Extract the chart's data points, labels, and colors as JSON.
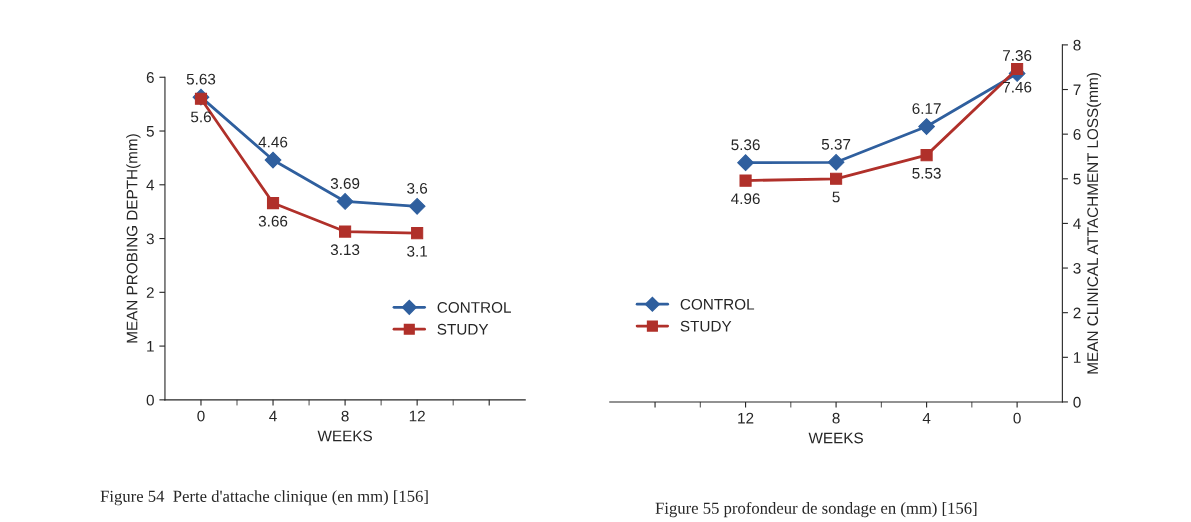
{
  "chart_data": [
    {
      "type": "line",
      "xlabel": "WEEKS",
      "ylabel": "MEAN PROBING DEPTH(mm)",
      "categories": [
        "0",
        "4",
        "8",
        "12",
        null
      ],
      "ylim": [
        0,
        6
      ],
      "yticks": [
        0,
        1,
        2,
        3,
        4,
        5,
        6
      ],
      "grid": false,
      "legend": "bottom right",
      "data_labels": true,
      "series": [
        {
          "name": "CONTROL",
          "color": "#2f5f9e",
          "marker": "diamond",
          "values": [
            5.63,
            4.46,
            3.69,
            3.6,
            null
          ]
        },
        {
          "name": "STUDY",
          "color": "#b0302a",
          "marker": "square",
          "values": [
            5.6,
            3.66,
            3.13,
            3.1,
            null
          ]
        }
      ],
      "annotations": [
        "Figure 54  Perte d'attache clinique (en mm) [156]"
      ]
    },
    {
      "type": "line",
      "xlabel": "WEEKS",
      "y2label": "MEAN CLINICAL ATTACHMENT LOSS(mm)",
      "categories": [
        null,
        "12",
        "8",
        "4",
        "0"
      ],
      "y2lim": [
        0,
        8
      ],
      "y2ticks": [
        0,
        1,
        2,
        3,
        4,
        5,
        6,
        7,
        8
      ],
      "grid": false,
      "legend": "bottom left",
      "data_labels": true,
      "series": [
        {
          "name": "CONTROL",
          "color": "#2f5f9e",
          "marker": "diamond",
          "axis": "y2",
          "values": [
            null,
            5.36,
            5.37,
            6.17,
            7.36
          ]
        },
        {
          "name": "STUDY",
          "color": "#b0302a",
          "marker": "square",
          "axis": "y2",
          "values": [
            null,
            4.96,
            5,
            5.53,
            7.46
          ]
        }
      ],
      "annotations": [
        "Figure 55 profondeur de sondage en (mm) [156]"
      ]
    }
  ]
}
